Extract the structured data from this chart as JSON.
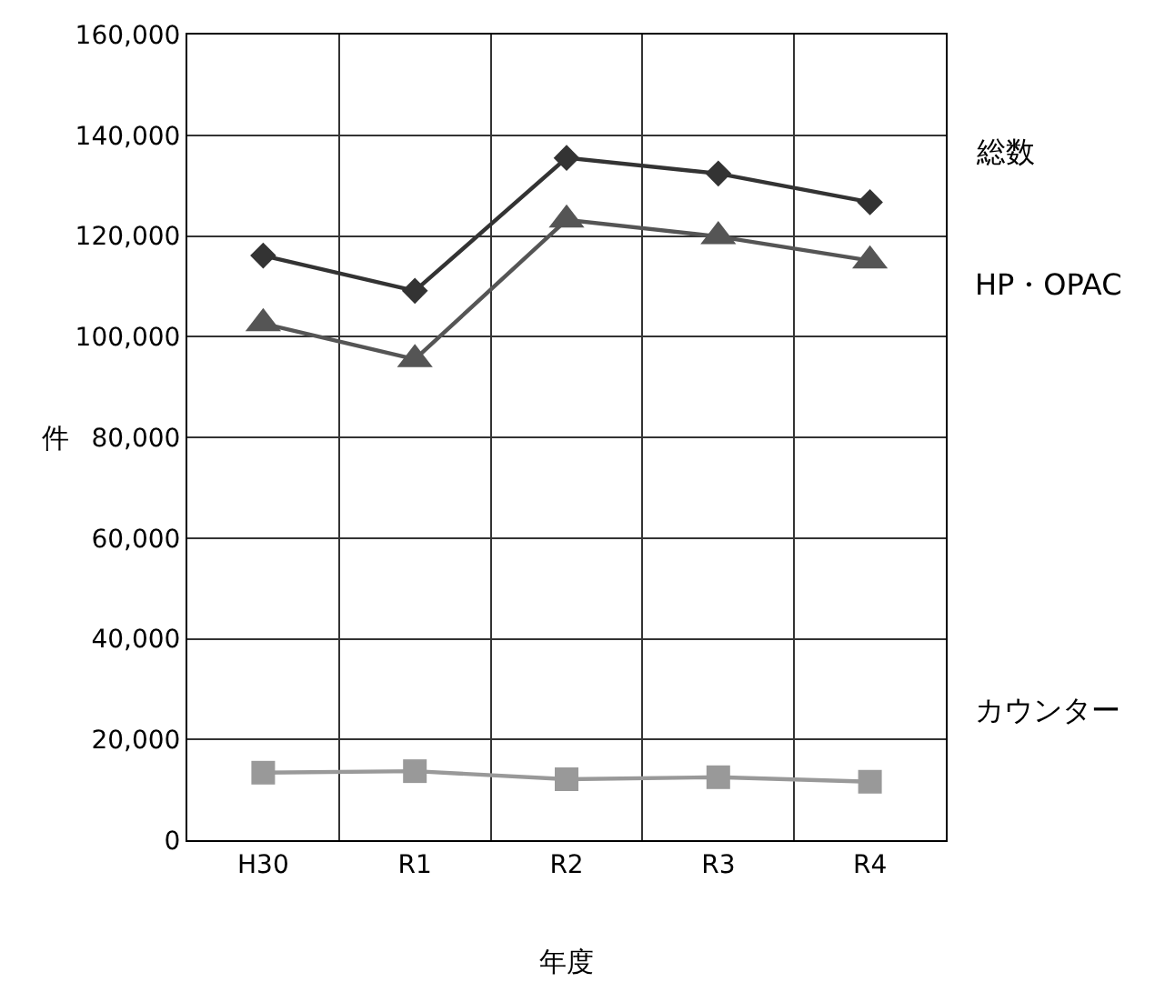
{
  "chart_data": {
    "type": "line",
    "xlabel": "年度",
    "ylabel": "件",
    "categories": [
      "H30",
      "R1",
      "R2",
      "R3",
      "R4"
    ],
    "series": [
      {
        "name": "総数",
        "color": "#333333",
        "marker": "diamond",
        "values": [
          116100,
          109100,
          135500,
          132400,
          126700
        ]
      },
      {
        "name": "HP・OPAC",
        "color": "#555555",
        "marker": "triangle",
        "values": [
          102600,
          95500,
          123200,
          119900,
          115100
        ]
      },
      {
        "name": "カウンター",
        "color": "#999999",
        "marker": "square",
        "values": [
          13400,
          13700,
          12100,
          12500,
          11600
        ]
      }
    ],
    "ylim": [
      0,
      160000
    ],
    "yticks": [
      {
        "value": 0,
        "label": "0"
      },
      {
        "value": 20000,
        "label": "20,000"
      },
      {
        "value": 40000,
        "label": "40,000"
      },
      {
        "value": 60000,
        "label": "60,000"
      },
      {
        "value": 80000,
        "label": "80,000"
      },
      {
        "value": 100000,
        "label": "100,000"
      },
      {
        "value": 120000,
        "label": "120,000"
      },
      {
        "value": 140000,
        "label": "140,000"
      },
      {
        "value": 160000,
        "label": "160,000"
      }
    ],
    "grid": true,
    "legend": false,
    "line_style": "solid"
  }
}
